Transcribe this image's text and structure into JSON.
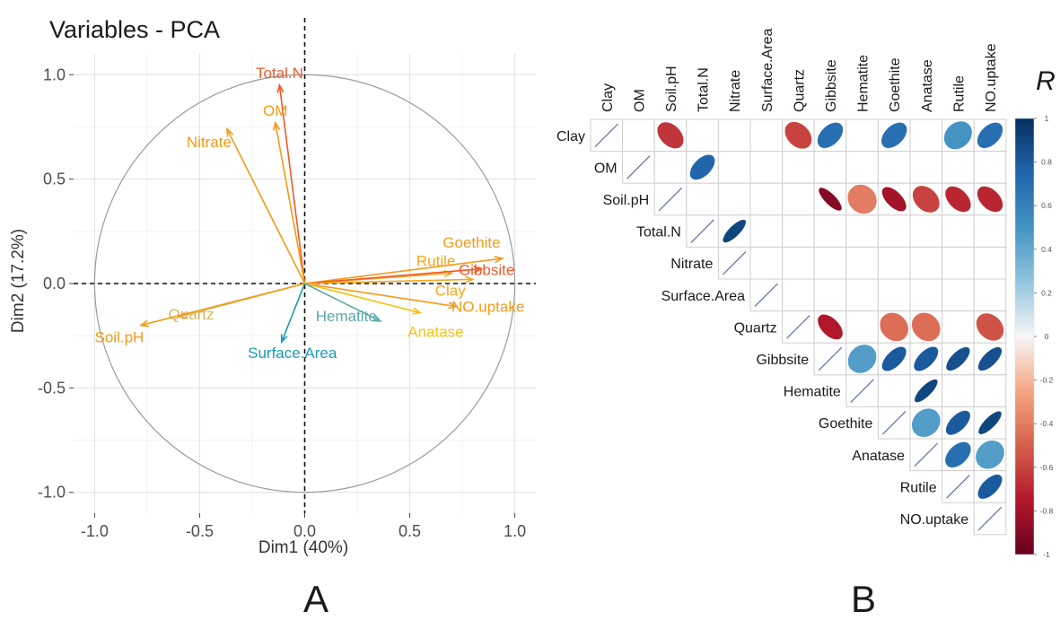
{
  "panel_labels": [
    "A",
    "B"
  ],
  "chart_data": [
    {
      "type": "scatter",
      "subtype": "pca-variable-correlation-circle",
      "title": "Variables - PCA",
      "xlabel": "Dim1 (40%)",
      "ylabel": "Dim2 (17.2%)",
      "xlim": [
        -1.1,
        1.1
      ],
      "ylim": [
        -1.1,
        1.1
      ],
      "xticks": [
        -1.0,
        -0.5,
        0.0,
        0.5,
        1.0
      ],
      "yticks": [
        -1.0,
        -0.5,
        0.0,
        0.5,
        1.0
      ],
      "xtick_labels": [
        "-1.0",
        "-0.5",
        "0.0",
        "0.5",
        "1.0"
      ],
      "ytick_labels": [
        "-1.0",
        "-0.5",
        "0.0",
        "0.5",
        "1.0"
      ],
      "grid": true,
      "series": [
        {
          "name": "Total.N",
          "x": -0.12,
          "y": 0.95,
          "color": "#f05a28"
        },
        {
          "name": "OM",
          "x": -0.14,
          "y": 0.77,
          "color": "#f39a18"
        },
        {
          "name": "Nitrate",
          "x": -0.37,
          "y": 0.74,
          "color": "#f39a18"
        },
        {
          "name": "Goethite",
          "x": 0.94,
          "y": 0.12,
          "color": "#f39a18"
        },
        {
          "name": "Rutile",
          "x": 0.7,
          "y": 0.05,
          "color": "#f6a81c"
        },
        {
          "name": "Gibbsite",
          "x": 0.84,
          "y": 0.07,
          "color": "#f05a28"
        },
        {
          "name": "Clay",
          "x": 0.8,
          "y": 0.02,
          "color": "#f6a81c"
        },
        {
          "name": "NO.uptake",
          "x": 0.72,
          "y": -0.11,
          "color": "#f39a18"
        },
        {
          "name": "Anatase",
          "x": 0.55,
          "y": -0.14,
          "color": "#f6c218"
        },
        {
          "name": "Hematite",
          "x": 0.36,
          "y": -0.18,
          "color": "#5aa9a9"
        },
        {
          "name": "Surface.Area",
          "x": -0.11,
          "y": -0.28,
          "color": "#1a9bb5"
        },
        {
          "name": "Quartz",
          "x": -0.6,
          "y": -0.16,
          "color": "#d8b35a"
        },
        {
          "name": "Soil.pH",
          "x": -0.78,
          "y": -0.2,
          "color": "#f39a18"
        }
      ]
    },
    {
      "type": "heatmap",
      "subtype": "correlation-matrix-upper-ellipse",
      "legend_title": "R",
      "colorbar_ticks": [
        1,
        0.8,
        0.6,
        0.4,
        0.2,
        0,
        -0.2,
        -0.4,
        -0.6,
        -0.8,
        -1
      ],
      "colorbar_tick_labels": [
        "1",
        "0.8",
        "0.6",
        "0.4",
        "0.2",
        "0",
        "-0.2",
        "-0.4",
        "-0.6",
        "-0.8",
        "-1"
      ],
      "variables": [
        "Clay",
        "OM",
        "Soil.pH",
        "Total.N",
        "Nitrate",
        "Surface.Area",
        "Quartz",
        "Gibbsite",
        "Hematite",
        "Goethite",
        "Anatase",
        "Rutile",
        "NO.uptake"
      ],
      "significant_correlations": [
        {
          "row": "Clay",
          "col": "Soil.pH",
          "r": -0.65
        },
        {
          "row": "Clay",
          "col": "Quartz",
          "r": -0.6
        },
        {
          "row": "Clay",
          "col": "Gibbsite",
          "r": 0.7
        },
        {
          "row": "Clay",
          "col": "Goethite",
          "r": 0.7
        },
        {
          "row": "Clay",
          "col": "Rutile",
          "r": 0.5
        },
        {
          "row": "Clay",
          "col": "NO.uptake",
          "r": 0.7
        },
        {
          "row": "OM",
          "col": "Total.N",
          "r": 0.75
        },
        {
          "row": "Soil.pH",
          "col": "Gibbsite",
          "r": -0.9
        },
        {
          "row": "Soil.pH",
          "col": "Hematite",
          "r": -0.4
        },
        {
          "row": "Soil.pH",
          "col": "Goethite",
          "r": -0.8
        },
        {
          "row": "Soil.pH",
          "col": "Anatase",
          "r": -0.6
        },
        {
          "row": "Soil.pH",
          "col": "Rutile",
          "r": -0.7
        },
        {
          "row": "Soil.pH",
          "col": "NO.uptake",
          "r": -0.7
        },
        {
          "row": "Total.N",
          "col": "Nitrate",
          "r": 0.9
        },
        {
          "row": "Quartz",
          "col": "Gibbsite",
          "r": -0.75
        },
        {
          "row": "Quartz",
          "col": "Goethite",
          "r": -0.45
        },
        {
          "row": "Quartz",
          "col": "Anatase",
          "r": -0.45
        },
        {
          "row": "Quartz",
          "col": "NO.uptake",
          "r": -0.55
        },
        {
          "row": "Gibbsite",
          "col": "Hematite",
          "r": 0.45
        },
        {
          "row": "Gibbsite",
          "col": "Goethite",
          "r": 0.8
        },
        {
          "row": "Gibbsite",
          "col": "Anatase",
          "r": 0.8
        },
        {
          "row": "Gibbsite",
          "col": "Rutile",
          "r": 0.85
        },
        {
          "row": "Gibbsite",
          "col": "NO.uptake",
          "r": 0.85
        },
        {
          "row": "Hematite",
          "col": "Anatase",
          "r": 0.9
        },
        {
          "row": "Goethite",
          "col": "Anatase",
          "r": 0.45
        },
        {
          "row": "Goethite",
          "col": "Rutile",
          "r": 0.8
        },
        {
          "row": "Goethite",
          "col": "NO.uptake",
          "r": 0.9
        },
        {
          "row": "Anatase",
          "col": "Rutile",
          "r": 0.7
        },
        {
          "row": "Anatase",
          "col": "NO.uptake",
          "r": 0.45
        },
        {
          "row": "Rutile",
          "col": "NO.uptake",
          "r": 0.8
        }
      ]
    }
  ]
}
